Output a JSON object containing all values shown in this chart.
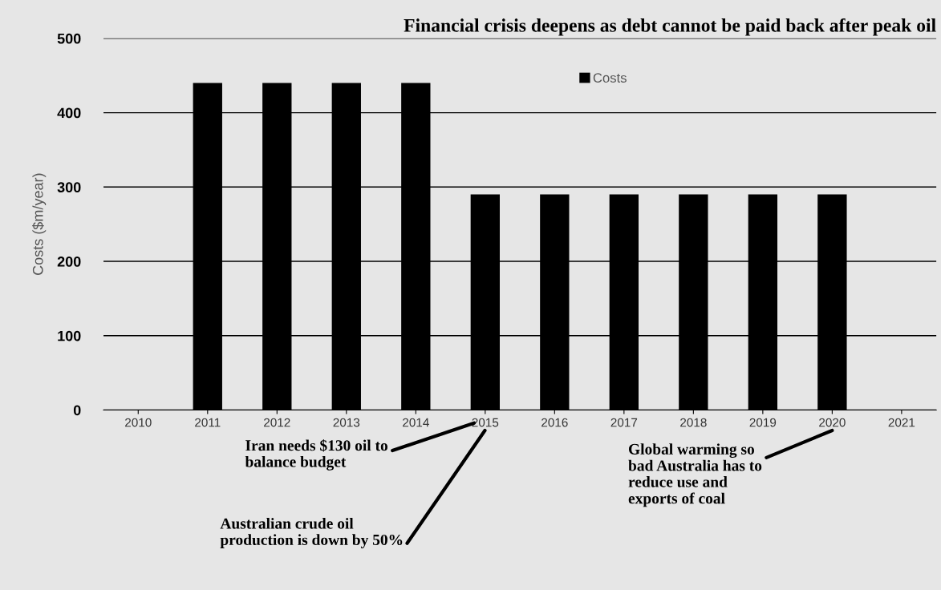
{
  "chart_data": {
    "type": "bar",
    "title": "Financial crisis deepens as debt cannot be paid back after peak oil",
    "ylabel": "Costs ($m/year)",
    "categories": [
      "2010",
      "2011",
      "2012",
      "2013",
      "2014",
      "2015",
      "2016",
      "2017",
      "2018",
      "2019",
      "2020",
      "2021"
    ],
    "series": [
      {
        "name": "Costs",
        "color": "#000000",
        "values": [
          null,
          440,
          440,
          440,
          440,
          290,
          290,
          290,
          290,
          290,
          290,
          null
        ]
      }
    ],
    "ylim": [
      0,
      500
    ],
    "yticks": [
      0,
      100,
      200,
      300,
      400,
      500
    ],
    "grid": "y",
    "legend": "top",
    "annotations": [
      "Iran needs $130 oil to\nbalance budget",
      "Australian crude oil\nproduction is down by 50%",
      "Global warming so\nbad Australia has to\nreduce use and\nexports of coal"
    ]
  }
}
